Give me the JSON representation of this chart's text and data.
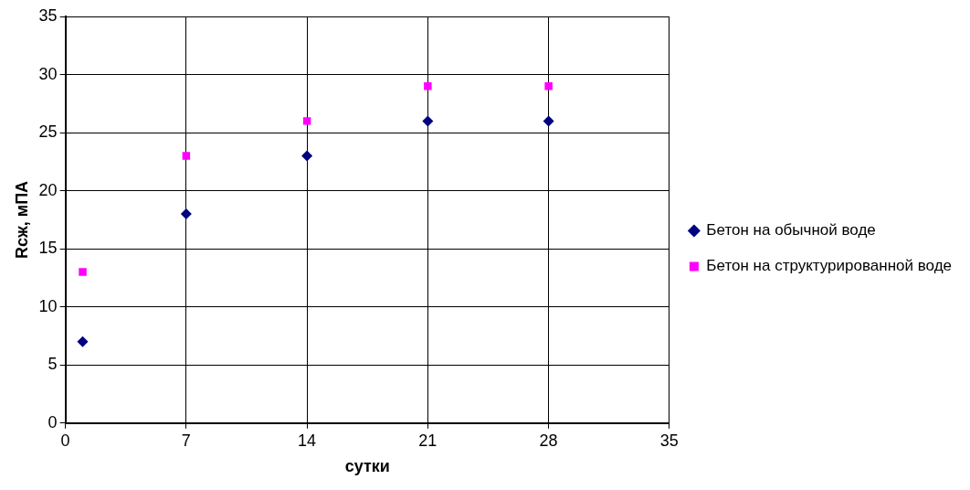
{
  "chart_data": {
    "type": "scatter",
    "xlabel": "сутки",
    "ylabel": "Rсж, мПА",
    "x": [
      1,
      7,
      14,
      21,
      28
    ],
    "series": [
      {
        "name": "Бетон на обычной воде",
        "color": "#000080",
        "marker": "diamond",
        "values": [
          7,
          18,
          23,
          26,
          26
        ]
      },
      {
        "name": "Бетон на структурированной воде",
        "color": "#ff00ff",
        "marker": "square",
        "values": [
          13,
          23,
          26,
          29,
          29
        ]
      }
    ],
    "xlim": [
      0,
      35
    ],
    "xticks": [
      0,
      7,
      14,
      21,
      28,
      35
    ],
    "ylim": [
      0,
      35
    ],
    "yticks": [
      0,
      5,
      10,
      15,
      20,
      25,
      30,
      35
    ],
    "grid": true,
    "legend": "right"
  }
}
